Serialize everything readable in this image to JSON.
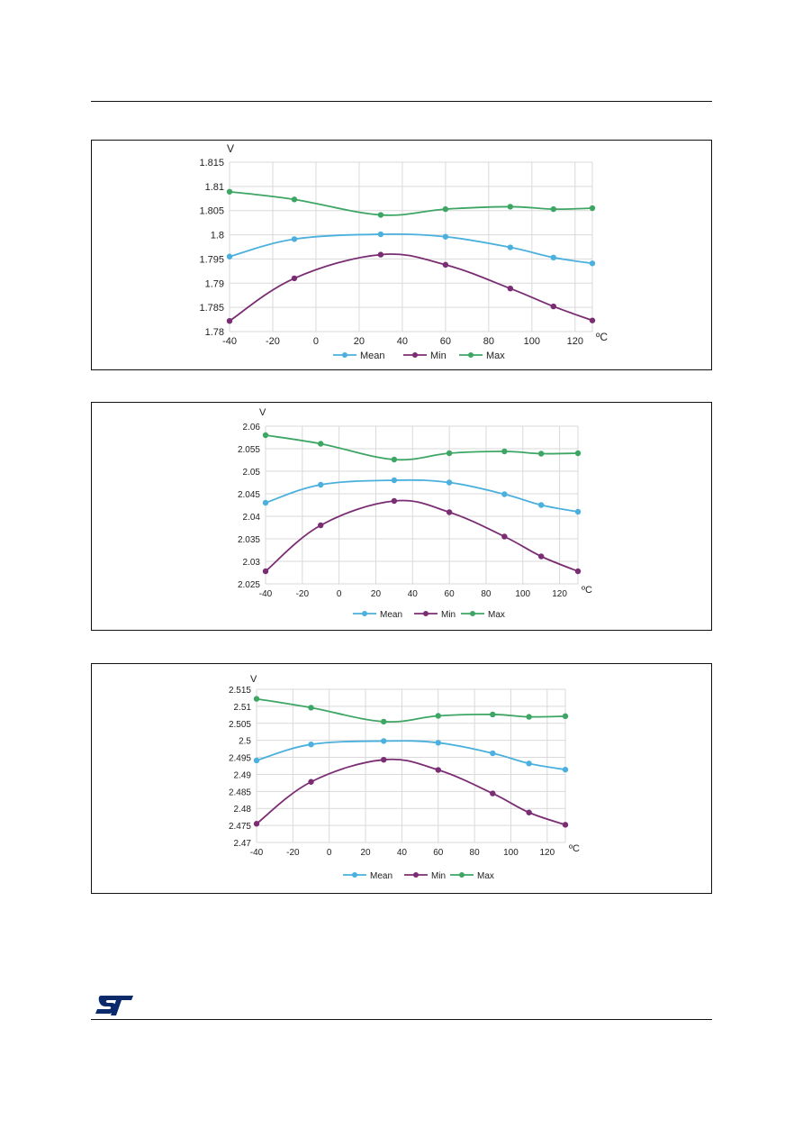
{
  "colors": {
    "mean": "#4bb0dd",
    "min": "#7b2d73",
    "max": "#3ea664",
    "grid": "#d9d9d9"
  },
  "logo": {
    "icon": "st-logo-icon",
    "text": "ST",
    "color": "#0b2a6b"
  },
  "chart_data": [
    {
      "type": "line",
      "yunit": "V",
      "xunit": "ºC",
      "ylim": [
        1.78,
        1.815
      ],
      "yticks": [
        "1.78",
        "1.785",
        "1.79",
        "1.795",
        "1.8",
        "1.805",
        "1.81",
        "1.815"
      ],
      "xlim": [
        -40,
        128
      ],
      "xticks": [
        "-40",
        "-20",
        "0",
        "20",
        "40",
        "60",
        "80",
        "100",
        "120"
      ],
      "grid": true,
      "legend": "bottom",
      "x": [
        -40,
        -10,
        30,
        60,
        90,
        110,
        128
      ],
      "series": [
        {
          "name": "Mean",
          "key": "mean",
          "values": [
            1.7955,
            1.7991,
            1.8001,
            1.7996,
            1.7974,
            1.7953,
            1.7941
          ]
        },
        {
          "name": "Min",
          "key": "min",
          "values": [
            1.7822,
            1.791,
            1.7959,
            1.7938,
            1.7889,
            1.7852,
            1.7823
          ]
        },
        {
          "name": "Max",
          "key": "max",
          "values": [
            1.8089,
            1.8073,
            1.8041,
            1.8053,
            1.8058,
            1.8053,
            1.8055
          ]
        }
      ]
    },
    {
      "type": "line",
      "yunit": "V",
      "xunit": "ºC",
      "ylim": [
        2.025,
        2.06
      ],
      "yticks": [
        "2.025",
        "2.03",
        "2.035",
        "2.04",
        "2.045",
        "2.05",
        "2.055",
        "2.06"
      ],
      "xlim": [
        -40,
        130
      ],
      "xticks": [
        "-40",
        "-20",
        "0",
        "20",
        "40",
        "60",
        "80",
        "100",
        "120"
      ],
      "grid": true,
      "legend": "bottom",
      "x": [
        -40,
        -10,
        30,
        60,
        90,
        110,
        130
      ],
      "series": [
        {
          "name": "Mean",
          "key": "mean",
          "values": [
            2.043,
            2.047,
            2.048,
            2.0475,
            2.0449,
            2.0425,
            2.041
          ]
        },
        {
          "name": "Min",
          "key": "min",
          "values": [
            2.0278,
            2.038,
            2.0434,
            2.0409,
            2.0355,
            2.0311,
            2.0278
          ]
        },
        {
          "name": "Max",
          "key": "max",
          "values": [
            2.058,
            2.0561,
            2.0526,
            2.054,
            2.0544,
            2.0539,
            2.054
          ]
        }
      ]
    },
    {
      "type": "line",
      "yunit": "V",
      "xunit": "ºC",
      "ylim": [
        2.47,
        2.515
      ],
      "yticks": [
        "2.47",
        "2.475",
        "2.48",
        "2.485",
        "2.49",
        "2.495",
        "2.5",
        "2.505",
        "2.51",
        "2.515"
      ],
      "xlim": [
        -40,
        130
      ],
      "xticks": [
        "-40",
        "-20",
        "0",
        "20",
        "40",
        "60",
        "80",
        "100",
        "120"
      ],
      "grid": true,
      "legend": "bottom",
      "x": [
        -40,
        -10,
        30,
        60,
        90,
        110,
        130
      ],
      "series": [
        {
          "name": "Mean",
          "key": "mean",
          "values": [
            2.4941,
            2.4988,
            2.4998,
            2.4993,
            2.4962,
            2.4932,
            2.4914
          ]
        },
        {
          "name": "Min",
          "key": "min",
          "values": [
            2.4755,
            2.4878,
            2.4943,
            2.4913,
            2.4844,
            2.4788,
            2.4752
          ]
        },
        {
          "name": "Max",
          "key": "max",
          "values": [
            2.5122,
            2.5096,
            2.5055,
            2.5072,
            2.5076,
            2.5069,
            2.5071
          ]
        }
      ]
    }
  ]
}
